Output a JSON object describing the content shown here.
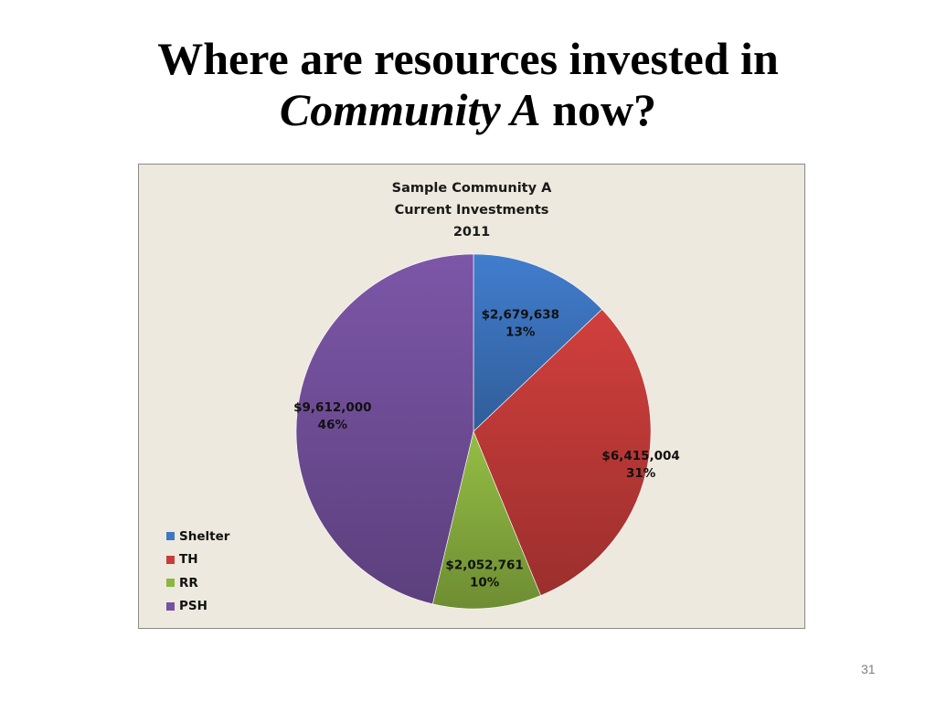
{
  "slide": {
    "title_line1": "Where are resources invested in",
    "title_line2_italic": "Community A",
    "title_line2_rest": "now?",
    "page_number": "31"
  },
  "chart_data": {
    "type": "pie",
    "title": "Sample Community A\nCurrent Investments\n2011",
    "categories": [
      "Shelter",
      "TH",
      "RR",
      "PSH"
    ],
    "values": [
      2679638,
      6415004,
      2052761,
      9612000
    ],
    "value_labels": [
      "$2,679,638",
      "$6,415,004",
      "$2,052,761",
      "$9,612,000"
    ],
    "percent_labels": [
      "13%",
      "31%",
      "10%",
      "46%"
    ],
    "colors": [
      "#3e77c4",
      "#c73c3a",
      "#8db541",
      "#7652a0"
    ],
    "legend_position": "left-bottom",
    "start_angle_deg": 0,
    "direction": "clockwise"
  }
}
